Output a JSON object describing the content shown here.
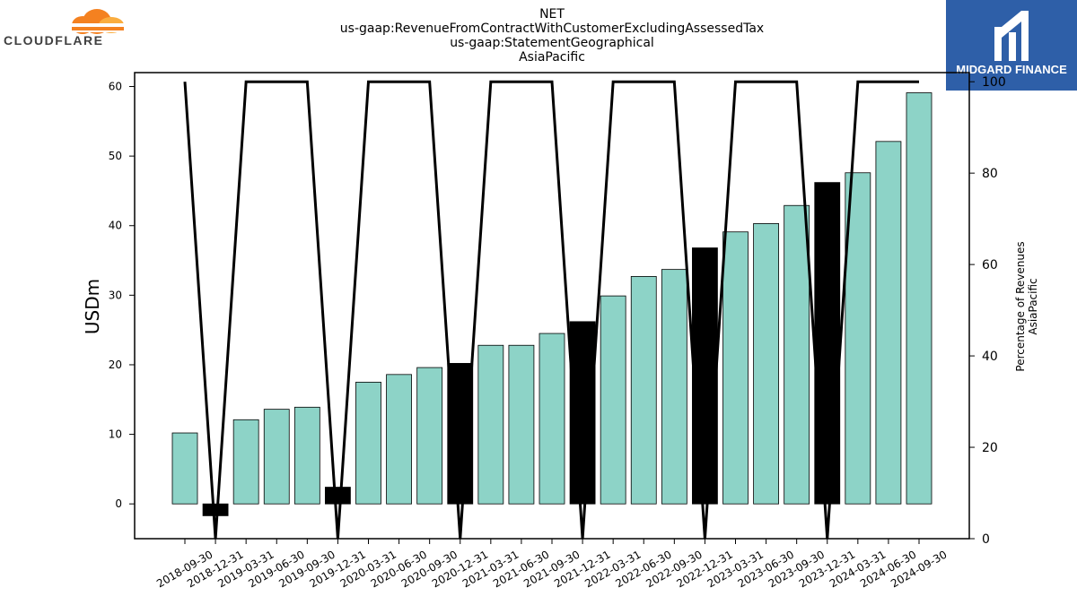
{
  "branding": {
    "left_logo_text": "CLOUDFLARE",
    "right_logo_text": "MIDGARD FINANCE",
    "right_logo_color": "#2e5fa8",
    "cloud_color": "#f48120"
  },
  "chart_data": {
    "type": "bar",
    "title_lines": [
      "NET",
      "us-gaap:RevenueFromContractWithCustomerExcludingAssessedTax",
      "us-gaap:StatementGeographical",
      "AsiaPacific"
    ],
    "ylabel": "USDm",
    "y2label_lines": [
      "Percentage of Revenues",
      "AsiaPacific"
    ],
    "ylim": [
      -5,
      62
    ],
    "y2lim": [
      0,
      102
    ],
    "yticks": [
      0,
      10,
      20,
      30,
      40,
      50,
      60
    ],
    "y2ticks": [
      0,
      20,
      40,
      60,
      80,
      100
    ],
    "categories": [
      "2018-09-30",
      "2018-12-31",
      "2019-03-31",
      "2019-06-30",
      "2019-09-30",
      "2019-12-31",
      "2020-03-31",
      "2020-06-30",
      "2020-09-30",
      "2020-12-31",
      "2021-03-31",
      "2021-06-30",
      "2021-09-30",
      "2021-12-31",
      "2022-03-31",
      "2022-06-30",
      "2022-09-30",
      "2022-12-31",
      "2023-03-31",
      "2023-06-30",
      "2023-09-30",
      "2023-12-31",
      "2024-03-31",
      "2024-06-30",
      "2024-09-30"
    ],
    "series": [
      {
        "values": [
          10.2,
          -1.7,
          12.1,
          13.6,
          13.9,
          2.4,
          17.5,
          18.6,
          19.6,
          20.2,
          22.8,
          22.8,
          24.5,
          26.2,
          29.9,
          32.7,
          33.7,
          36.8,
          39.1,
          40.3,
          42.9,
          46.2,
          47.6,
          52.1,
          59.1
        ]
      },
      {
        "values": [
          100,
          0,
          100,
          100,
          100,
          0,
          100,
          100,
          100,
          0,
          100,
          100,
          100,
          0,
          100,
          100,
          100,
          0,
          100,
          100,
          100,
          0,
          100,
          100,
          100
        ]
      }
    ],
    "bar_colors": {
      "quarter": "#8dd3c7",
      "annual": "#000000"
    },
    "highlight_indices": [
      1,
      5,
      9,
      13,
      17,
      21
    ],
    "line_color": "#000000",
    "grid": false
  }
}
